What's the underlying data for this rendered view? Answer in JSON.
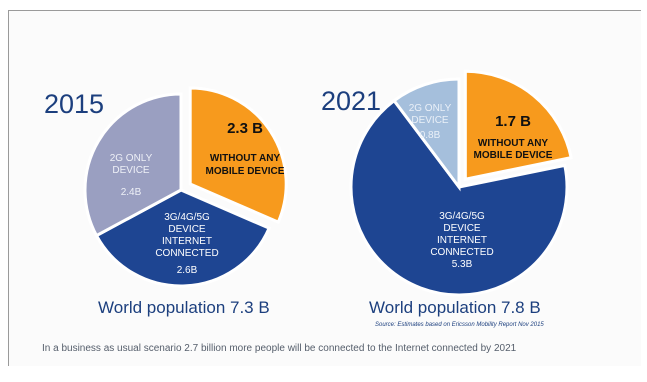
{
  "chart_data": [
    {
      "type": "pie",
      "title": "2015",
      "caption": "World population 7.3 B",
      "slices": [
        {
          "lines": [
            "2.3 B",
            "WITHOUT ANY",
            "MOBILE DEVICE"
          ],
          "value": 2.3,
          "color": "#f79a1d",
          "exploded": true
        },
        {
          "lines": [
            "3G/4G/5G",
            "DEVICE",
            "INTERNET",
            "CONNECTED",
            "2.6B"
          ],
          "value": 2.6,
          "color": "#1e4592",
          "exploded": false
        },
        {
          "lines": [
            "2G ONLY",
            "DEVICE",
            "",
            "2.4B"
          ],
          "value": 2.4,
          "color": "#9a9fc1",
          "exploded": false
        }
      ]
    },
    {
      "type": "pie",
      "title": "2021",
      "caption": "World population 7.8 B",
      "slices": [
        {
          "lines": [
            "1.7 B",
            "WITHOUT ANY",
            "MOBILE DEVICE"
          ],
          "value": 1.7,
          "color": "#f79a1d",
          "exploded": true
        },
        {
          "lines": [
            "3G/4G/5G",
            "DEVICE",
            "INTERNET",
            "CONNECTED",
            "5.3B"
          ],
          "value": 5.3,
          "color": "#1e4592",
          "exploded": false
        },
        {
          "lines": [
            "2G ONLY",
            "DEVICE",
            "0.8B"
          ],
          "value": 0.8,
          "color": "#a5bfdc",
          "exploded": false
        }
      ]
    }
  ],
  "source": "Source: Estimates based on Ericsson Mobility Report Nov 2015",
  "footnote": "In a business as usual scenario 2.7 billion more people will be connected to the Internet connected by 2021"
}
